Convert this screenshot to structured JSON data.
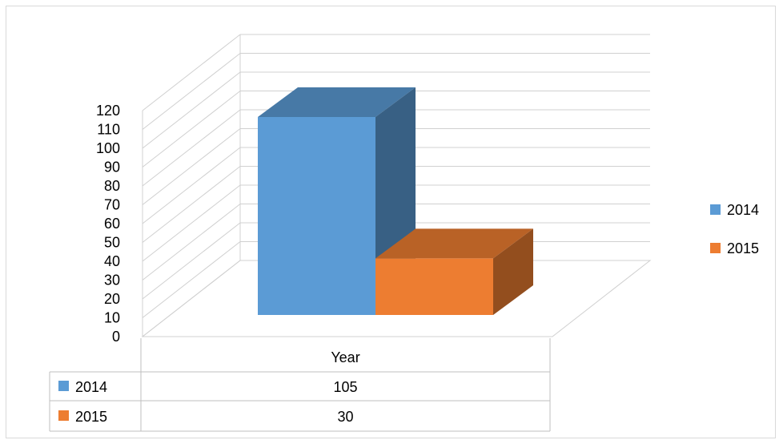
{
  "chart_data": {
    "type": "bar",
    "categories": [
      "Year"
    ],
    "series": [
      {
        "name": "2014",
        "values": [
          105
        ],
        "color": "#5b9bd5"
      },
      {
        "name": "2015",
        "values": [
          30
        ],
        "color": "#ed7d31"
      }
    ],
    "ylim": [
      0,
      120
    ],
    "yticks": [
      0,
      10,
      20,
      30,
      40,
      50,
      60,
      70,
      80,
      90,
      100,
      110,
      120
    ],
    "grid": true,
    "legend_position": "right",
    "data_table": true
  }
}
